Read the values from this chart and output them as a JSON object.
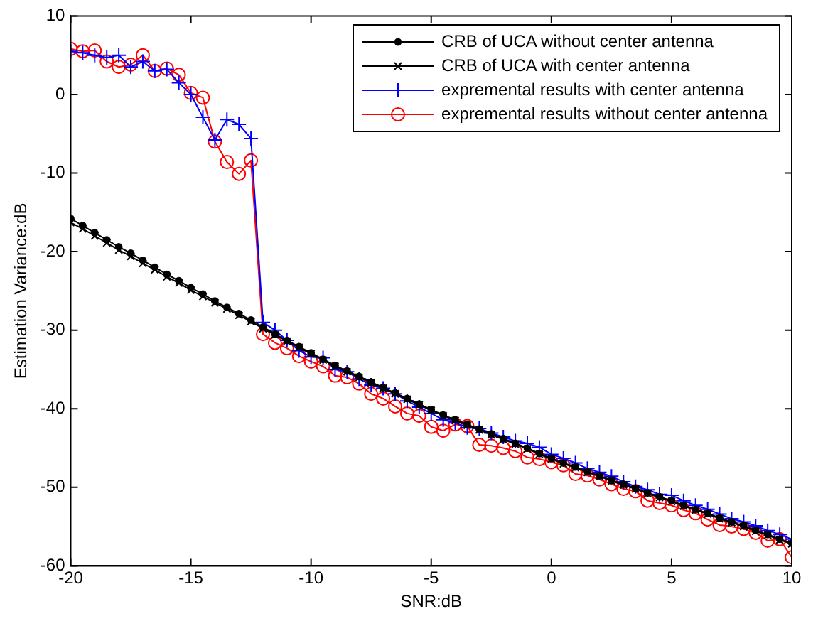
{
  "chart_data": {
    "type": "line",
    "xlabel": "SNR:dB",
    "ylabel": "Estimation Variance:dB",
    "xlim": [
      -20,
      10
    ],
    "xticks": [
      -20,
      -15,
      -10,
      -5,
      0,
      5,
      10
    ],
    "ylim": [
      -60,
      10
    ],
    "yticks": [
      -60,
      -50,
      -40,
      -30,
      -20,
      -10,
      0,
      10
    ],
    "grid": false,
    "legend": "top right",
    "x": [
      -20,
      -19.5,
      -19,
      -18.5,
      -18,
      -17.5,
      -17,
      -16.5,
      -16,
      -15.5,
      -15,
      -14.5,
      -14,
      -13.5,
      -13,
      -12.5,
      -12,
      -11.5,
      -11,
      -10.5,
      -10,
      -9.5,
      -9,
      -8.5,
      -8,
      -7.5,
      -7,
      -6.5,
      -6,
      -5.5,
      -5,
      -4.5,
      -4,
      -3.5,
      -3,
      -2.5,
      -2,
      -1.5,
      -1,
      -0.5,
      0,
      0.5,
      1,
      1.5,
      2,
      2.5,
      3,
      3.5,
      4,
      4.5,
      5,
      5.5,
      6,
      6.5,
      7,
      7.5,
      8,
      8.5,
      9,
      9.5,
      10
    ],
    "series": [
      {
        "name": "CRB of UCA without center antenna",
        "color": "#000000",
        "marker": "dot",
        "values": [
          -15.8,
          -16.7,
          -17.6,
          -18.5,
          -19.4,
          -20.2,
          -21.1,
          -22.0,
          -22.9,
          -23.7,
          -24.6,
          -25.4,
          -26.3,
          -27.1,
          -27.9,
          -28.7,
          -29.6,
          -30.5,
          -31.3,
          -32.1,
          -32.9,
          -33.7,
          -34.5,
          -35.2,
          -35.9,
          -36.6,
          -37.3,
          -38.0,
          -38.7,
          -39.4,
          -40.1,
          -40.8,
          -41.4,
          -42.0,
          -42.6,
          -43.2,
          -43.8,
          -44.4,
          -45.0,
          -45.7,
          -46.3,
          -46.9,
          -47.4,
          -48.0,
          -48.5,
          -49.1,
          -49.6,
          -50.1,
          -50.7,
          -51.2,
          -51.7,
          -52.3,
          -52.8,
          -53.3,
          -53.9,
          -54.4,
          -54.9,
          -55.5,
          -56.0,
          -56.6,
          -57.1
        ]
      },
      {
        "name": "CRB of UCA with center antenna",
        "color": "#000000",
        "marker": "x",
        "values": [
          -16.3,
          -17.1,
          -18.0,
          -18.9,
          -19.8,
          -20.6,
          -21.5,
          -22.3,
          -23.2,
          -24.0,
          -24.9,
          -25.7,
          -26.5,
          -27.3,
          -28.1,
          -28.9,
          -29.8,
          -30.6,
          -31.4,
          -32.2,
          -33.0,
          -33.8,
          -34.6,
          -35.3,
          -36.0,
          -36.7,
          -37.4,
          -38.1,
          -38.8,
          -39.5,
          -40.2,
          -40.9,
          -41.5,
          -42.1,
          -42.7,
          -43.3,
          -43.9,
          -44.5,
          -45.1,
          -45.8,
          -46.4,
          -47.0,
          -47.5,
          -48.1,
          -48.6,
          -49.2,
          -49.7,
          -50.2,
          -50.8,
          -51.3,
          -51.8,
          -52.4,
          -52.9,
          -53.4,
          -54.0,
          -54.5,
          -55.0,
          -55.6,
          -56.1,
          -56.7,
          -57.2
        ]
      },
      {
        "name": "expremental results with center antenna",
        "color": "#0000ff",
        "marker": "plus",
        "values": [
          5.5,
          5.3,
          5.0,
          4.7,
          5.0,
          3.5,
          4.2,
          3.0,
          3.2,
          1.5,
          0.0,
          -2.9,
          -5.8,
          -3.2,
          -3.8,
          -5.6,
          -29.0,
          -30.0,
          -31.3,
          -32.6,
          -33.4,
          -33.5,
          -35.0,
          -35.3,
          -36.2,
          -37.0,
          -37.4,
          -38.1,
          -39.0,
          -39.8,
          -40.6,
          -41.4,
          -41.8,
          -42.4,
          -42.5,
          -43.1,
          -43.6,
          -44.1,
          -44.4,
          -44.9,
          -45.8,
          -46.3,
          -46.9,
          -47.6,
          -48.1,
          -48.6,
          -49.3,
          -49.9,
          -50.3,
          -50.9,
          -51.0,
          -51.7,
          -52.3,
          -52.8,
          -53.4,
          -54.0,
          -54.4,
          -54.9,
          -55.5,
          -56.0,
          -56.6
        ]
      },
      {
        "name": "expremental results without center antenna",
        "color": "#ff0000",
        "marker": "circle",
        "values": [
          5.8,
          5.5,
          5.6,
          4.2,
          3.5,
          3.8,
          5.0,
          3.0,
          3.3,
          2.5,
          0.2,
          -0.4,
          -6.0,
          -8.6,
          -10.1,
          -8.4,
          -30.5,
          -31.6,
          -32.3,
          -33.3,
          -34.0,
          -34.6,
          -35.8,
          -36.0,
          -36.8,
          -38.1,
          -38.7,
          -39.7,
          -40.6,
          -40.9,
          -42.3,
          -42.8,
          -42.0,
          -42.2,
          -44.6,
          -44.7,
          -45.0,
          -45.4,
          -46.2,
          -46.4,
          -46.8,
          -47.2,
          -48.3,
          -48.5,
          -49.0,
          -49.6,
          -50.2,
          -50.5,
          -51.7,
          -52.0,
          -52.3,
          -52.9,
          -53.3,
          -54.1,
          -54.8,
          -55.0,
          -55.3,
          -55.8,
          -56.8,
          -56.6,
          -58.9
        ]
      }
    ]
  }
}
